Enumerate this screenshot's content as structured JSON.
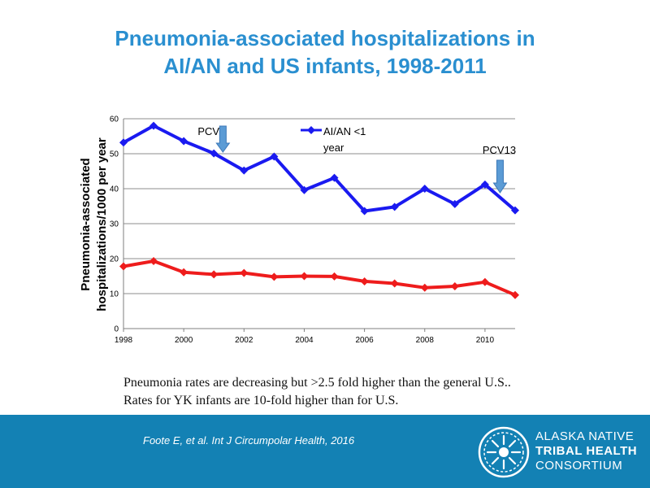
{
  "slide": {
    "title_line1": "Pneumonia-associated hospitalizations in",
    "title_line2": "AI/AN and US infants, 1998-2011",
    "caption_line1": "Pneumonia rates are decreasing but >2.5 fold higher than the general U.S..",
    "caption_line2": "Rates for YK infants are 10-fold higher than for U.S.",
    "citation": "Foote E, et al.  Int J Circumpolar Health, 2016",
    "org_line1": "ALASKA NATIVE",
    "org_line2": "TRIBAL HEALTH",
    "org_line3": "CONSORTIUM"
  },
  "colors": {
    "title": "#2a8fd0",
    "series_aian": "#1a1af0",
    "series_us": "#ee1c1c",
    "footer": "#1381b4",
    "arrow": "#5b9bd5"
  },
  "chart_data": {
    "type": "line",
    "ylabel_line1": "Pneumonia-associated",
    "ylabel_line2": "hospitalizations/1000 per year",
    "xlim": [
      1998,
      2011
    ],
    "ylim": [
      0,
      60
    ],
    "xticks": [
      1998,
      2000,
      2002,
      2004,
      2006,
      2008,
      2010
    ],
    "yticks": [
      0,
      10,
      20,
      30,
      40,
      50,
      60
    ],
    "grid": true,
    "legend_position": "top-center",
    "series": [
      {
        "name": "AI/AN <1 year",
        "legend_line1": "AI/AN <1",
        "legend_line2": "year",
        "color": "#1a1af0",
        "x": [
          1998,
          1999,
          2000,
          2001,
          2002,
          2003,
          2004,
          2005,
          2006,
          2007,
          2008,
          2009,
          2010,
          2011
        ],
        "y": [
          53.2,
          58.0,
          53.6,
          50.1,
          45.2,
          49.2,
          39.6,
          43.1,
          33.6,
          34.8,
          40.0,
          35.6,
          41.2,
          33.8
        ]
      },
      {
        "color": "#ee1c1c",
        "x": [
          1998,
          1999,
          2000,
          2001,
          2002,
          2003,
          2004,
          2005,
          2006,
          2007,
          2008,
          2009,
          2010,
          2011
        ],
        "y": [
          17.8,
          19.3,
          16.1,
          15.5,
          15.9,
          14.8,
          15.0,
          14.9,
          13.5,
          12.9,
          11.7,
          12.1,
          13.3,
          9.6
        ]
      }
    ],
    "annotations": [
      {
        "label": "PCV7",
        "x": 2001.3
      },
      {
        "label": "PCV13",
        "x": 2010.5
      }
    ]
  }
}
